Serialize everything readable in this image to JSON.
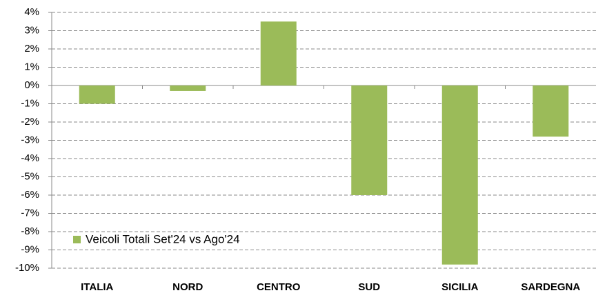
{
  "chart_data": {
    "type": "bar",
    "categories": [
      "ITALIA",
      "NORD",
      "CENTRO",
      "SUD",
      "SICILIA",
      "SARDEGNA"
    ],
    "series": [
      {
        "name": "Veicoli Totali Set'24 vs Ago'24",
        "color": "#9bbb59",
        "values": [
          -1.0,
          -0.3,
          3.5,
          -6.0,
          -9.8,
          -2.8
        ]
      }
    ],
    "ylim": [
      -10,
      4
    ],
    "yticks": [
      {
        "value": -10,
        "label": "-10%"
      },
      {
        "value": -9,
        "label": "-9%"
      },
      {
        "value": -8,
        "label": "-8%"
      },
      {
        "value": -7,
        "label": "-7%"
      },
      {
        "value": -6,
        "label": "-6%"
      },
      {
        "value": -5,
        "label": "-5%"
      },
      {
        "value": -4,
        "label": "-4%"
      },
      {
        "value": -3,
        "label": "-3%"
      },
      {
        "value": -2,
        "label": "-2%"
      },
      {
        "value": -1,
        "label": "-1%"
      },
      {
        "value": 0,
        "label": "0%"
      },
      {
        "value": 1,
        "label": "1%"
      },
      {
        "value": 2,
        "label": "2%"
      },
      {
        "value": 3,
        "label": "3%"
      },
      {
        "value": 4,
        "label": "4%"
      }
    ],
    "grid": true,
    "legend": "lower-left"
  }
}
